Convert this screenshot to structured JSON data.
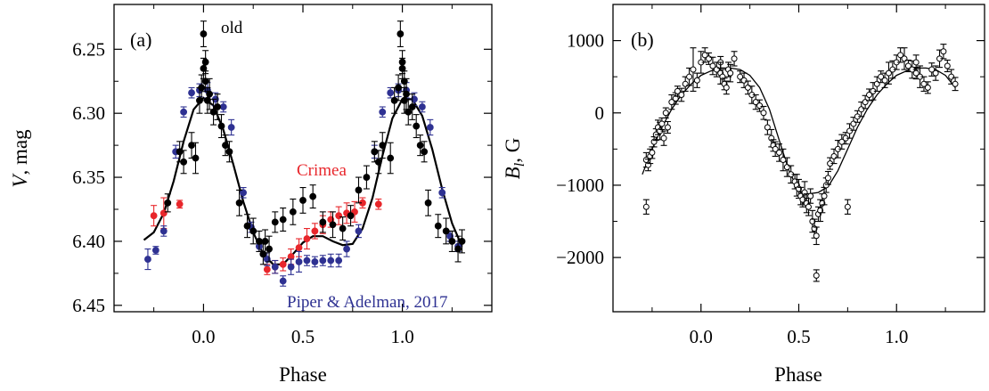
{
  "chart_data": [
    {
      "type": "scatter",
      "panel_label": "(a)",
      "xlabel": "Phase",
      "ylabel": "V, mag",
      "xlim": [
        -0.45,
        1.45
      ],
      "ylim": [
        6.455,
        6.215
      ],
      "inverted_y": true,
      "x_ticks": [
        0.0,
        0.5,
        1.0
      ],
      "x_tick_labels": [
        "0.0",
        "0.5",
        "1.0"
      ],
      "y_ticks": [
        6.25,
        6.3,
        6.35,
        6.4,
        6.45
      ],
      "y_tick_labels": [
        "6.25",
        "6.30",
        "6.35",
        "6.40",
        "6.45"
      ],
      "grid": false,
      "annotations": [
        {
          "id": "old",
          "text": "old",
          "color": "#000000"
        },
        {
          "id": "crimea",
          "text": "Crimea",
          "color": "#e8262b"
        },
        {
          "id": "piper",
          "text": "Piper & Adelman, 2017",
          "color": "#2e3192"
        }
      ],
      "series": [
        {
          "name": "Crimea",
          "color": "#e8262b",
          "x": [
            -0.25,
            -0.2,
            -0.12,
            0.32,
            0.36,
            0.4,
            0.44,
            0.48,
            0.52,
            0.56,
            0.6,
            0.64,
            0.68,
            0.72,
            0.76,
            0.8,
            0.88
          ],
          "y": [
            6.38,
            6.378,
            6.371,
            6.422,
            6.42,
            6.418,
            6.412,
            6.405,
            6.398,
            6.392,
            6.387,
            6.383,
            6.38,
            6.378,
            6.377,
            6.37,
            6.371
          ],
          "err": [
            0.008,
            0.012,
            0.003,
            0.004,
            0.005,
            0.005,
            0.006,
            0.007,
            0.008,
            0.006,
            0.007,
            0.006,
            0.007,
            0.008,
            0.008,
            0.004,
            0.004
          ]
        },
        {
          "name": "Piper & Adelman, 2017",
          "color": "#2e3192",
          "x": [
            -0.28,
            -0.24,
            -0.2,
            -0.14,
            -0.1,
            -0.06,
            -0.02,
            0.02,
            0.06,
            0.1,
            0.14,
            0.2,
            0.24,
            0.28,
            0.32,
            0.36,
            0.4,
            0.44,
            0.48,
            0.52,
            0.56,
            0.6,
            0.64,
            0.68,
            0.72,
            0.78,
            0.86,
            0.9,
            0.94,
            0.98,
            1.02,
            1.06,
            1.1,
            1.14,
            1.2,
            1.24,
            1.28
          ],
          "y": [
            6.414,
            6.407,
            6.392,
            6.33,
            6.299,
            6.284,
            6.282,
            6.282,
            6.289,
            6.295,
            6.311,
            6.362,
            6.389,
            6.404,
            6.414,
            6.42,
            6.431,
            6.42,
            6.416,
            6.415,
            6.416,
            6.415,
            6.415,
            6.415,
            6.406,
            6.392,
            6.33,
            6.299,
            6.284,
            6.282,
            6.282,
            6.289,
            6.295,
            6.311,
            6.362,
            6.396,
            6.404
          ],
          "err": [
            0.008,
            0.003,
            0.004,
            0.005,
            0.004,
            0.004,
            0.005,
            0.006,
            0.005,
            0.004,
            0.006,
            0.004,
            0.004,
            0.004,
            0.005,
            0.005,
            0.004,
            0.006,
            0.008,
            0.004,
            0.004,
            0.004,
            0.005,
            0.005,
            0.006,
            0.005,
            0.005,
            0.004,
            0.004,
            0.005,
            0.006,
            0.005,
            0.004,
            0.006,
            0.004,
            0.004,
            0.004
          ]
        },
        {
          "name": "old",
          "color": "#000000",
          "x": [
            -0.18,
            -0.12,
            -0.1,
            -0.06,
            -0.04,
            -0.02,
            -0.01,
            0.0,
            0.0,
            0.01,
            0.01,
            0.02,
            0.03,
            0.05,
            0.07,
            0.09,
            0.11,
            0.13,
            0.18,
            0.22,
            0.25,
            0.28,
            0.3,
            0.31,
            0.33,
            0.36,
            0.4,
            0.45,
            0.5,
            0.55,
            0.6,
            0.65,
            0.7,
            0.74,
            0.78,
            0.82,
            0.86,
            0.88,
            0.9,
            0.94,
            0.96,
            0.98,
            0.99,
            1.0,
            1.0,
            1.01,
            1.01,
            1.02,
            1.03,
            1.05,
            1.07,
            1.09,
            1.11,
            1.13,
            1.18,
            1.22,
            1.25,
            1.28,
            1.3
          ],
          "y": [
            6.37,
            6.33,
            6.338,
            6.325,
            6.335,
            6.29,
            6.28,
            6.238,
            6.265,
            6.26,
            6.275,
            6.29,
            6.285,
            6.299,
            6.295,
            6.31,
            6.325,
            6.33,
            6.37,
            6.388,
            6.392,
            6.4,
            6.41,
            6.4,
            6.406,
            6.385,
            6.383,
            6.377,
            6.368,
            6.365,
            6.385,
            6.387,
            6.39,
            6.38,
            6.36,
            6.35,
            6.33,
            6.338,
            6.325,
            6.335,
            6.29,
            6.28,
            6.238,
            6.265,
            6.26,
            6.275,
            6.29,
            6.285,
            6.299,
            6.295,
            6.31,
            6.325,
            6.33,
            6.37,
            6.388,
            6.392,
            6.4,
            6.406,
            6.4
          ],
          "err": [
            0.007,
            0.008,
            0.009,
            0.01,
            0.012,
            0.01,
            0.01,
            0.01,
            0.008,
            0.009,
            0.008,
            0.01,
            0.012,
            0.01,
            0.01,
            0.009,
            0.008,
            0.008,
            0.01,
            0.009,
            0.01,
            0.008,
            0.008,
            0.009,
            0.01,
            0.008,
            0.009,
            0.01,
            0.01,
            0.009,
            0.008,
            0.01,
            0.009,
            0.008,
            0.01,
            0.009,
            0.008,
            0.009,
            0.01,
            0.012,
            0.01,
            0.01,
            0.01,
            0.008,
            0.009,
            0.008,
            0.01,
            0.012,
            0.01,
            0.01,
            0.009,
            0.008,
            0.008,
            0.01,
            0.009,
            0.01,
            0.008,
            0.01,
            0.009
          ]
        }
      ],
      "fit_curve": {
        "x": [
          -0.3,
          -0.25,
          -0.2,
          -0.15,
          -0.1,
          -0.05,
          0.0,
          0.05,
          0.1,
          0.15,
          0.2,
          0.25,
          0.3,
          0.35,
          0.4,
          0.45,
          0.5,
          0.55,
          0.6,
          0.65,
          0.7,
          0.75,
          0.8,
          0.85,
          0.9,
          0.95,
          1.0,
          1.05,
          1.1,
          1.15,
          1.2,
          1.25,
          1.3
        ],
        "y": [
          6.399,
          6.393,
          6.378,
          6.353,
          6.322,
          6.297,
          6.288,
          6.294,
          6.313,
          6.34,
          6.369,
          6.393,
          6.41,
          6.418,
          6.418,
          6.41,
          6.401,
          6.396,
          6.396,
          6.4,
          6.403,
          6.402,
          6.39,
          6.366,
          6.333,
          6.304,
          6.289,
          6.289,
          6.302,
          6.328,
          6.359,
          6.386,
          6.404
        ]
      }
    },
    {
      "type": "scatter",
      "panel_label": "(b)",
      "xlabel": "Phase",
      "ylabel": "B",
      "ylabel_sub": "l",
      "ylabel_unit": ", G",
      "xlim": [
        -0.45,
        1.45
      ],
      "ylim": [
        -2750,
        1500
      ],
      "x_ticks": [
        0.0,
        0.5,
        1.0
      ],
      "x_tick_labels": [
        "0.0",
        "0.5",
        "1.0"
      ],
      "y_ticks": [
        1000,
        0,
        -1000,
        -2000
      ],
      "y_tick_labels": [
        "1000",
        "0",
        "−1000",
        "−2000"
      ],
      "grid": false,
      "series": [
        {
          "name": "",
          "color": "#000000",
          "marker": "open-circle",
          "x": [
            -0.28,
            -0.27,
            -0.26,
            -0.25,
            -0.24,
            -0.23,
            -0.22,
            -0.21,
            -0.2,
            -0.19,
            -0.18,
            -0.17,
            -0.15,
            -0.13,
            -0.12,
            -0.1,
            -0.08,
            -0.06,
            -0.04,
            -0.02,
            0.0,
            0.02,
            0.04,
            0.06,
            0.08,
            0.1,
            0.1,
            0.11,
            0.12,
            0.13,
            0.14,
            0.15,
            0.17,
            0.2,
            0.22,
            0.24,
            0.26,
            0.28,
            0.3,
            0.32,
            0.34,
            0.36,
            0.37,
            0.38,
            0.4,
            0.42,
            0.44,
            0.46,
            0.48,
            0.49,
            0.5,
            0.51,
            0.52,
            0.53,
            0.54,
            0.55,
            0.56,
            0.57,
            0.58,
            0.59,
            0.6,
            0.61,
            0.62,
            0.63,
            0.64,
            0.65,
            0.66,
            0.68,
            0.7,
            0.72,
            0.74,
            0.76,
            0.78,
            0.8,
            0.82,
            0.84,
            0.86,
            0.88,
            0.9,
            0.92,
            0.94,
            0.96,
            0.98,
            1.0,
            1.02,
            1.04,
            1.06,
            1.08,
            1.1,
            1.1,
            1.12,
            1.14,
            1.16,
            1.18,
            1.2,
            1.22,
            1.24,
            1.26,
            1.28,
            1.3,
            -0.28,
            0.59,
            0.75
          ],
          "y": [
            -650,
            -720,
            -600,
            -550,
            -400,
            -300,
            -200,
            -250,
            -150,
            -350,
            0,
            -200,
            150,
            200,
            300,
            250,
            400,
            500,
            600,
            450,
            700,
            800,
            750,
            650,
            600,
            700,
            550,
            500,
            400,
            350,
            600,
            550,
            750,
            500,
            450,
            350,
            250,
            150,
            100,
            0,
            -200,
            -350,
            -450,
            -500,
            -550,
            -650,
            -750,
            -850,
            -950,
            -1000,
            -1050,
            -1150,
            -1200,
            -1100,
            -1250,
            -1300,
            -1150,
            -1500,
            -1600,
            -1700,
            -1400,
            -1350,
            -1250,
            -1150,
            -1000,
            -900,
            -700,
            -600,
            -500,
            -400,
            -350,
            -250,
            -150,
            -50,
            50,
            150,
            250,
            300,
            400,
            500,
            450,
            550,
            600,
            700,
            800,
            750,
            650,
            600,
            700,
            550,
            500,
            400,
            350,
            600,
            550,
            750,
            850,
            650,
            500,
            400,
            -1300,
            -2250,
            -1300
          ],
          "err": [
            100,
            80,
            100,
            80,
            70,
            80,
            100,
            120,
            80,
            100,
            70,
            80,
            100,
            80,
            70,
            90,
            100,
            120,
            300,
            100,
            150,
            100,
            80,
            120,
            100,
            80,
            150,
            100,
            80,
            90,
            100,
            120,
            100,
            80,
            100,
            90,
            120,
            100,
            80,
            90,
            100,
            120,
            80,
            100,
            120,
            150,
            130,
            120,
            100,
            150,
            130,
            120,
            100,
            150,
            130,
            120,
            100,
            150,
            130,
            120,
            100,
            150,
            130,
            120,
            100,
            90,
            80,
            100,
            120,
            100,
            80,
            100,
            90,
            80,
            100,
            90,
            80,
            120,
            100,
            80,
            100,
            150,
            120,
            100,
            100,
            150,
            80,
            120,
            100,
            80,
            150,
            100,
            80,
            90,
            100,
            120,
            100,
            80,
            100,
            90,
            100,
            80,
            100
          ]
        }
      ],
      "fit_curve": {
        "x": [
          -0.3,
          -0.25,
          -0.2,
          -0.15,
          -0.1,
          -0.05,
          0.0,
          0.05,
          0.1,
          0.15,
          0.2,
          0.25,
          0.3,
          0.35,
          0.4,
          0.45,
          0.5,
          0.55,
          0.6,
          0.65,
          0.7,
          0.75,
          0.8,
          0.85,
          0.9,
          0.95,
          1.0,
          1.05,
          1.1,
          1.15,
          1.2,
          1.25,
          1.3
        ],
        "y": [
          -850,
          -500,
          -200,
          50,
          250,
          400,
          520,
          580,
          620,
          620,
          600,
          520,
          350,
          50,
          -380,
          -800,
          -1080,
          -1120,
          -1100,
          -1020,
          -800,
          -500,
          -200,
          50,
          250,
          400,
          520,
          580,
          620,
          620,
          600,
          520,
          350
        ]
      }
    }
  ]
}
